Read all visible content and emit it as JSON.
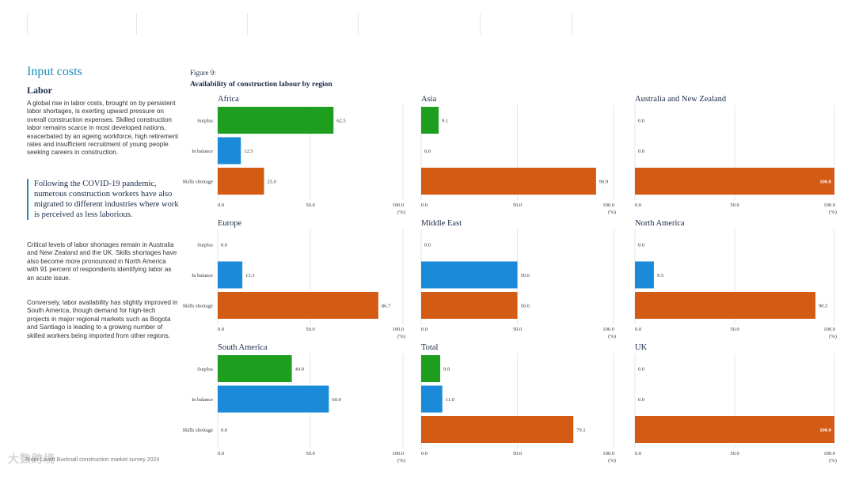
{
  "page": {
    "section_title": "Input costs",
    "subsection_title": "Labor",
    "paragraph_1": "A global rise in labor costs, brought on by persistent labor shortages, is exerting upward pressure on overall construction expenses. Skilled construction labor remains scarce in most developed nations, exacerbated by an ageing workforce, high retirement rates and insufficient recruitment of young people seeking careers in construction.",
    "quote": "Following the COVID-19 pandemic, numerous construction workers have also migrated to different industries where work is perceived as less laborious.",
    "paragraph_2": "Critical levels of labor shortages remain in Australia and New Zealand and the UK. Skills shortages have also become more pronounced in North America with 91 percent of respondents identifying labor as an acute issue.",
    "paragraph_3": "Conversely, labor availability has slightly improved in South America, though demand for high-tech projects in major regional markets such as Bogota and Santiago is leading to a growing number of skilled workers being imported from other regions.",
    "figure_label": "Figure 9:",
    "figure_title": "Availability of construction labour by region",
    "footer": "Rider Levett Bucknall construction market survey 2024",
    "watermark": "大数跨境"
  },
  "colors": {
    "surplus": "#1e9e1e",
    "in_balance": "#1b8ad8",
    "skills_shortage": "#d35b14",
    "grid": "#e6e6e6",
    "axis_text": "#333333",
    "panel_title": "#1a2a48"
  },
  "chart_data": [
    {
      "type": "bar",
      "orientation": "horizontal",
      "title": "Africa",
      "categories": [
        "Surplus",
        "In balance",
        "Skills shortage"
      ],
      "values": [
        62.5,
        12.5,
        25.0
      ],
      "xlim": [
        0,
        100
      ],
      "xticks": [
        0,
        50,
        100
      ],
      "xtick_labels": [
        "0.0",
        "50.0",
        "100.0"
      ],
      "unit": "(%)"
    },
    {
      "type": "bar",
      "orientation": "horizontal",
      "title": "Asia",
      "categories": [
        "Surplus",
        "In balance",
        "Skills shortage"
      ],
      "values": [
        9.1,
        0.0,
        90.9
      ],
      "xlim": [
        0,
        100
      ],
      "xticks": [
        0,
        50,
        100
      ],
      "xtick_labels": [
        "0.0",
        "50.0",
        "100.0"
      ],
      "unit": "(%)"
    },
    {
      "type": "bar",
      "orientation": "horizontal",
      "title": "Australia and New Zealand",
      "categories": [
        "Surplus",
        "In balance",
        "Skills shortage"
      ],
      "values": [
        0.0,
        0.0,
        100.0
      ],
      "xlim": [
        0,
        100
      ],
      "xticks": [
        0,
        50,
        100
      ],
      "xtick_labels": [
        "0.0",
        "50.0",
        "100.0"
      ],
      "unit": "(%)"
    },
    {
      "type": "bar",
      "orientation": "horizontal",
      "title": "Europe",
      "categories": [
        "Surplus",
        "In balance",
        "Skills shortage"
      ],
      "values": [
        0.0,
        13.3,
        86.7
      ],
      "xlim": [
        0,
        100
      ],
      "xticks": [
        0,
        50,
        100
      ],
      "xtick_labels": [
        "0.0",
        "50.0",
        "100.0"
      ],
      "unit": "(%)"
    },
    {
      "type": "bar",
      "orientation": "horizontal",
      "title": "Middle East",
      "categories": [
        "Surplus",
        "In balance",
        "Skills shortage"
      ],
      "values": [
        0.0,
        50.0,
        50.0
      ],
      "xlim": [
        0,
        100
      ],
      "xticks": [
        0,
        50,
        100
      ],
      "xtick_labels": [
        "0.0",
        "50.0",
        "100.0"
      ],
      "unit": "(%)"
    },
    {
      "type": "bar",
      "orientation": "horizontal",
      "title": "North America",
      "categories": [
        "Surplus",
        "In balance",
        "Skills shortage"
      ],
      "values": [
        0.0,
        9.5,
        90.5
      ],
      "xlim": [
        0,
        100
      ],
      "xticks": [
        0,
        50,
        100
      ],
      "xtick_labels": [
        "0.0",
        "50.0",
        "100.0"
      ],
      "unit": "(%)"
    },
    {
      "type": "bar",
      "orientation": "horizontal",
      "title": "South America",
      "categories": [
        "Surplus",
        "In balance",
        "Skills shortage"
      ],
      "values": [
        40.0,
        60.0,
        0.0
      ],
      "xlim": [
        0,
        100
      ],
      "xticks": [
        0,
        50,
        100
      ],
      "xtick_labels": [
        "0.0",
        "50.0",
        "100.0"
      ],
      "unit": "(%)"
    },
    {
      "type": "bar",
      "orientation": "horizontal",
      "title": "Total",
      "categories": [
        "Surplus",
        "In balance",
        "Skills shortage"
      ],
      "values": [
        9.9,
        11.0,
        79.1
      ],
      "xlim": [
        0,
        100
      ],
      "xticks": [
        0,
        50,
        100
      ],
      "xtick_labels": [
        "0.0",
        "50.0",
        "100.0"
      ],
      "unit": "(%)"
    },
    {
      "type": "bar",
      "orientation": "horizontal",
      "title": "UK",
      "categories": [
        "Surplus",
        "In balance",
        "Skills shortage"
      ],
      "values": [
        0.0,
        0.0,
        100.0
      ],
      "xlim": [
        0,
        100
      ],
      "xticks": [
        0,
        50,
        100
      ],
      "xtick_labels": [
        "0.0",
        "50.0",
        "100.0"
      ],
      "unit": "(%)"
    }
  ]
}
